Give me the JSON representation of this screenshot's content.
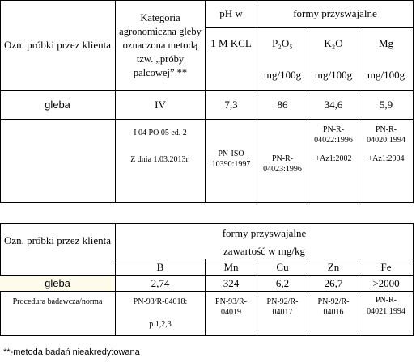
{
  "table1": {
    "header": {
      "sample": "Ozn. próbki przez klienta",
      "category": "Kategoria agronomiczna gleby oznaczona metodą tzw. „próby palcowej” **",
      "ph": "pH w",
      "ph_unit": "1 M KCL",
      "forms": "formy przyswajalne",
      "elements": [
        "P₂O₅",
        "K₂O",
        "Mg"
      ],
      "units": [
        "mg/100g",
        "mg/100g",
        "mg/100g"
      ]
    },
    "row": [
      "gleba",
      "IV",
      "7,3",
      "86",
      "34,6",
      "5,9"
    ],
    "methods": [
      "I 04 PO 05 ed. 2",
      "Z dnia 1.03.2013r.",
      "PN-ISO 10390:1997",
      "PN-R-04023:1996",
      "PN-R-04022:1996",
      "+Az1:2002",
      "PN-R-04020:1994",
      "+Az1:2004"
    ]
  },
  "table2": {
    "header": {
      "sample": "Ozn. próbki przez klienta",
      "forms": "formy przyswajalne",
      "content": "zawartość w mg/kg",
      "elements": [
        "B",
        "Mn",
        "Cu",
        "Zn",
        "Fe"
      ]
    },
    "row": [
      "gleba",
      "2,74",
      "324",
      "6,2",
      "26,7",
      ">2000"
    ],
    "procedure": [
      "Procedura badawcza/norma",
      "PN-93/R-04018:",
      "p.1,2,3",
      "PN-93/R-04019",
      "PN-92/R-04017",
      "PN-92/R-04016",
      "PN-R-04021:1994"
    ]
  },
  "footnote": "**-metoda badań nieakredytowana"
}
